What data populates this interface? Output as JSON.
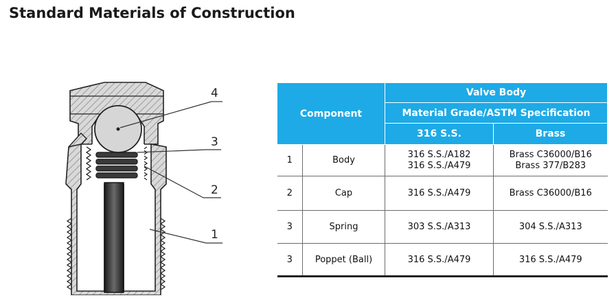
{
  "title": "Standard Materials of Construction",
  "diagram": {
    "callouts": [
      "4",
      "3",
      "2",
      "1"
    ]
  },
  "table": {
    "header": {
      "component": "Component",
      "valve_body": "Valve Body",
      "material_grade": "Material Grade/ASTM Specification",
      "ss": "316 S.S.",
      "brass": "Brass"
    },
    "rows": [
      {
        "num": "1",
        "component": "Body",
        "ss": [
          "316 S.S./A182",
          "316 S.S./A479"
        ],
        "brass": [
          "Brass C36000/B16",
          "Brass 377/B283"
        ]
      },
      {
        "num": "2",
        "component": "Cap",
        "ss": [
          "316 S.S./A479"
        ],
        "brass": [
          "Brass C36000/B16"
        ]
      },
      {
        "num": "3",
        "component": "Spring",
        "ss": [
          "303 S.S./A313"
        ],
        "brass": [
          "304 S.S./A313"
        ]
      },
      {
        "num": "3",
        "component": "Poppet (Ball)",
        "ss": [
          "316 S.S./A479"
        ],
        "brass": [
          "316 S.S./A479"
        ]
      }
    ]
  }
}
